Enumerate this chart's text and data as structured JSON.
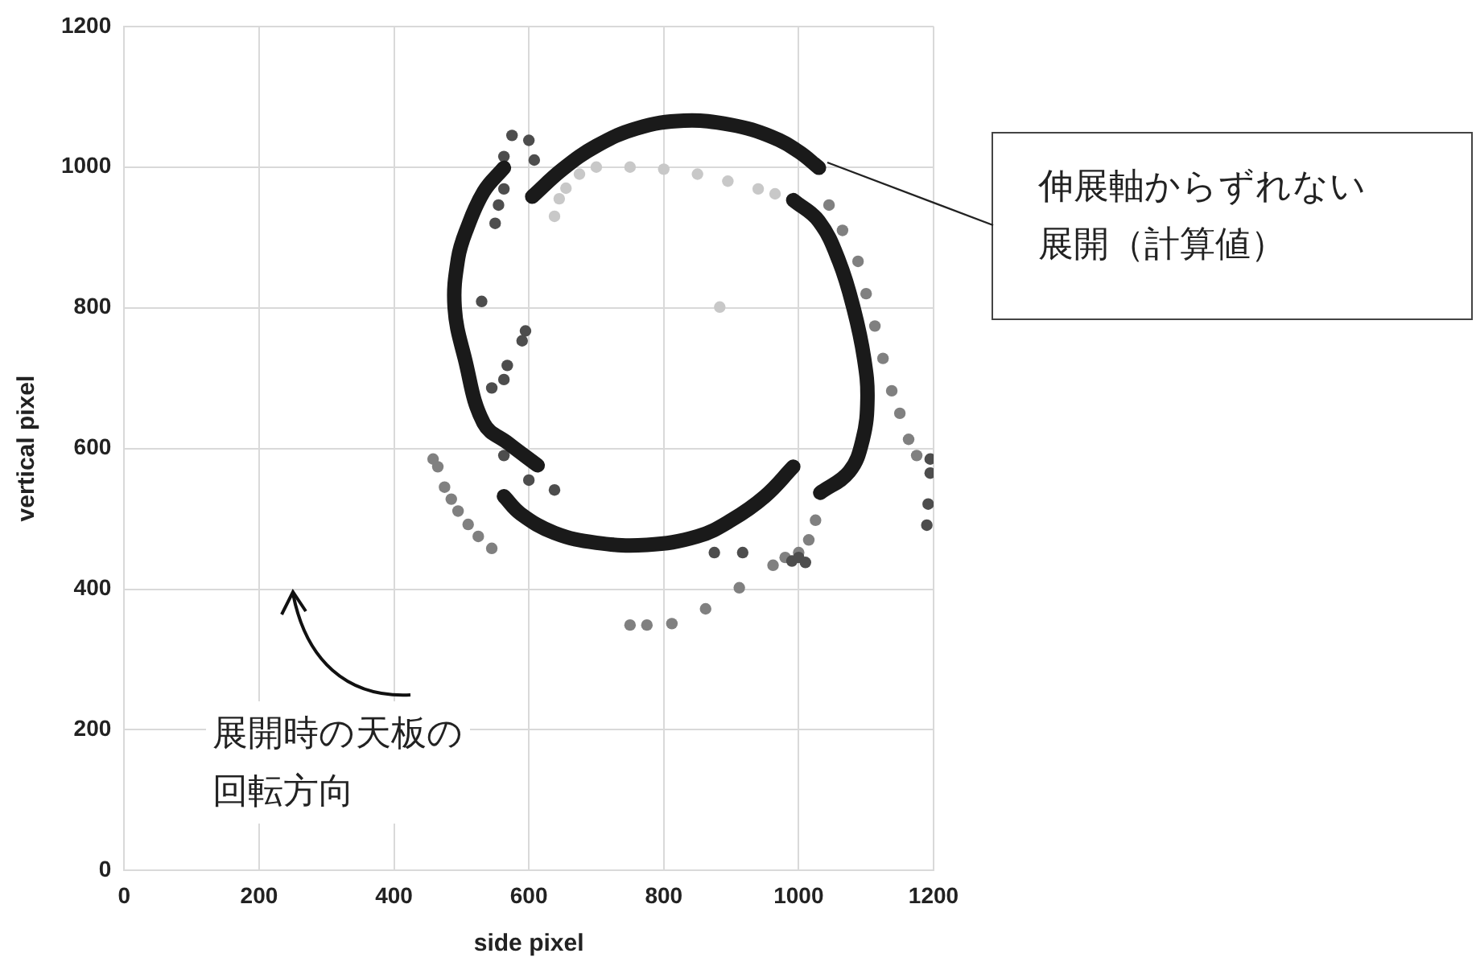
{
  "chart_data": {
    "type": "scatter",
    "xlabel": "side pixel",
    "ylabel": "vertical pixel",
    "xlim": [
      0,
      1200
    ],
    "xticks": [
      0,
      200,
      400,
      600,
      800,
      1000,
      1200
    ],
    "ylim": [
      0,
      1200
    ],
    "yticks": [
      0,
      200,
      400,
      600,
      800,
      1000,
      1200
    ],
    "grid": true,
    "legend": false,
    "marker": "circle",
    "annotations": [
      "伸展軸からずれない展開（計算値）",
      "展開時の天板の回転方向"
    ],
    "series": [
      {
        "type": "line",
        "marker": "none",
        "color": "#1a1a1a",
        "x": [
          605,
          650,
          700,
          760,
          830,
          900,
          960,
          1000,
          1030
        ],
        "values": [
          958,
          997,
          1030,
          1055,
          1066,
          1060,
          1043,
          1022,
          999
        ]
      },
      {
        "type": "line",
        "marker": "none",
        "color": "#1a1a1a",
        "x": [
          992,
          1030,
          1060,
          1082,
          1097,
          1102,
          1095,
          1075,
          1032
        ],
        "values": [
          953,
          923,
          866,
          797,
          728,
          671,
          613,
          567,
          537
        ]
      },
      {
        "type": "line",
        "marker": "none",
        "color": "#1a1a1a",
        "x": [
          992,
          950,
          900,
          850,
          775,
          700,
          638,
          588,
          563
        ],
        "values": [
          574,
          532,
          498,
          475,
          463,
          466,
          480,
          507,
          532
        ]
      },
      {
        "type": "line",
        "marker": "none",
        "color": "#1a1a1a",
        "x": [
          613,
          570,
          533,
          505,
          490,
          495,
          508,
          533,
          563
        ],
        "values": [
          576,
          607,
          636,
          728,
          800,
          870,
          912,
          965,
          999
        ]
      },
      {
        "color": "#c8c8c8",
        "x": [
          638,
          645,
          655,
          675,
          700,
          750,
          800,
          850,
          895,
          940,
          965,
          883
        ],
        "values": [
          930,
          955,
          970,
          990,
          1000,
          1000,
          997,
          990,
          980,
          969,
          962,
          801
        ]
      },
      {
        "color": "#4d4d4d",
        "x": [
          575,
          600,
          608,
          563,
          563,
          555,
          550,
          530,
          595,
          590,
          568,
          563,
          545,
          563,
          600,
          638,
          875,
          917,
          990,
          1000,
          1010,
          1195,
          1195,
          1192,
          1190
        ],
        "values": [
          1045,
          1038,
          1010,
          1015,
          969,
          946,
          920,
          809,
          767,
          753,
          718,
          698,
          686,
          590,
          555,
          541,
          452,
          452,
          440,
          445,
          438,
          585,
          565,
          521,
          491
        ]
      },
      {
        "color": "#808080",
        "x": [
          1045,
          1065,
          1088,
          1100,
          1113,
          1125,
          1138,
          1150,
          1163,
          1175,
          458,
          465,
          475,
          485,
          495,
          510,
          525,
          545,
          750,
          775,
          812,
          862,
          912,
          962,
          980,
          1000,
          1015,
          1025
        ],
        "values": [
          946,
          910,
          866,
          820,
          774,
          728,
          682,
          650,
          613,
          590,
          585,
          574,
          545,
          528,
          511,
          492,
          475,
          458,
          349,
          349,
          351,
          372,
          402,
          434,
          445,
          452,
          470,
          498
        ]
      }
    ]
  }
}
